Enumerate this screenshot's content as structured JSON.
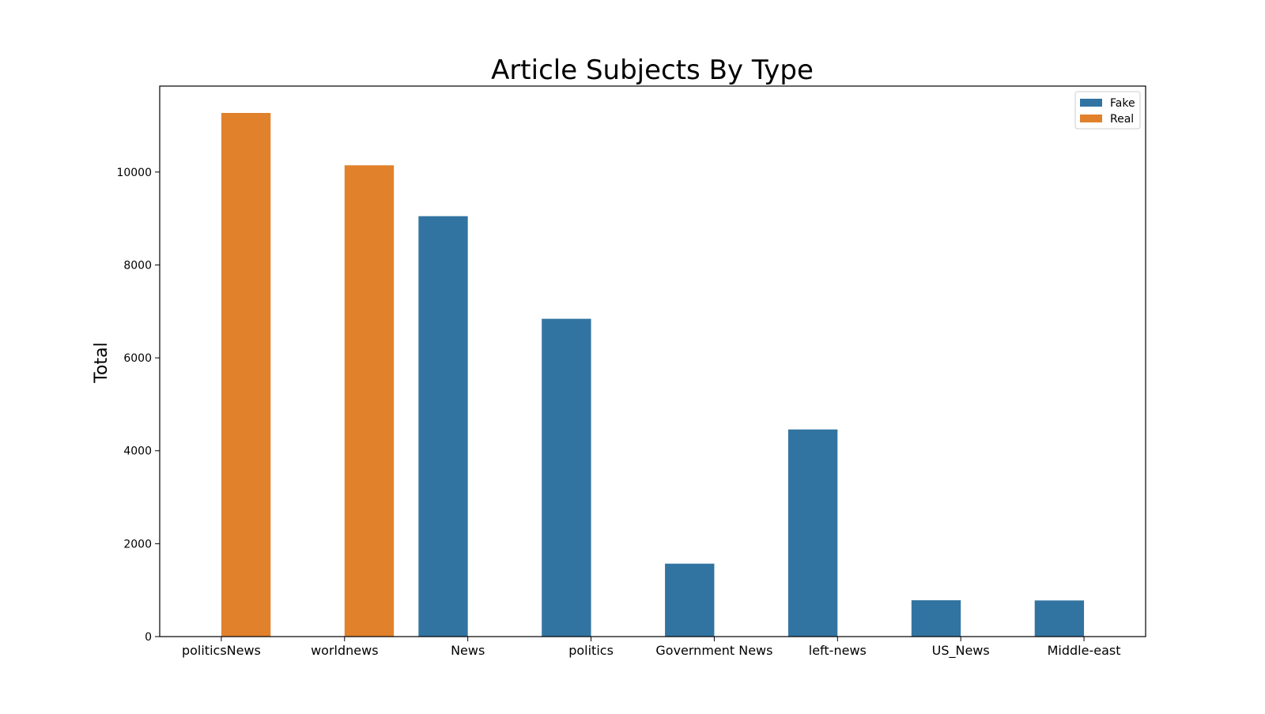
{
  "chart_data": {
    "type": "bar",
    "title": "Article Subjects By Type",
    "xlabel": "",
    "ylabel": "Total",
    "ylim": [
      0,
      11850
    ],
    "yticks": [
      0,
      2000,
      4000,
      6000,
      8000,
      10000
    ],
    "categories": [
      "politicsNews",
      "worldnews",
      "News",
      "politics",
      "Government News",
      "left-news",
      "US_News",
      "Middle-east"
    ],
    "series": [
      {
        "name": "Fake",
        "color": "#3274a1",
        "values": [
          0,
          0,
          9050,
          6841,
          1570,
          4459,
          783,
          778
        ]
      },
      {
        "name": "Real",
        "color": "#e1812c",
        "values": [
          11272,
          10145,
          0,
          0,
          0,
          0,
          0,
          0
        ]
      }
    ],
    "legend_position": "top-right",
    "grid": false
  }
}
